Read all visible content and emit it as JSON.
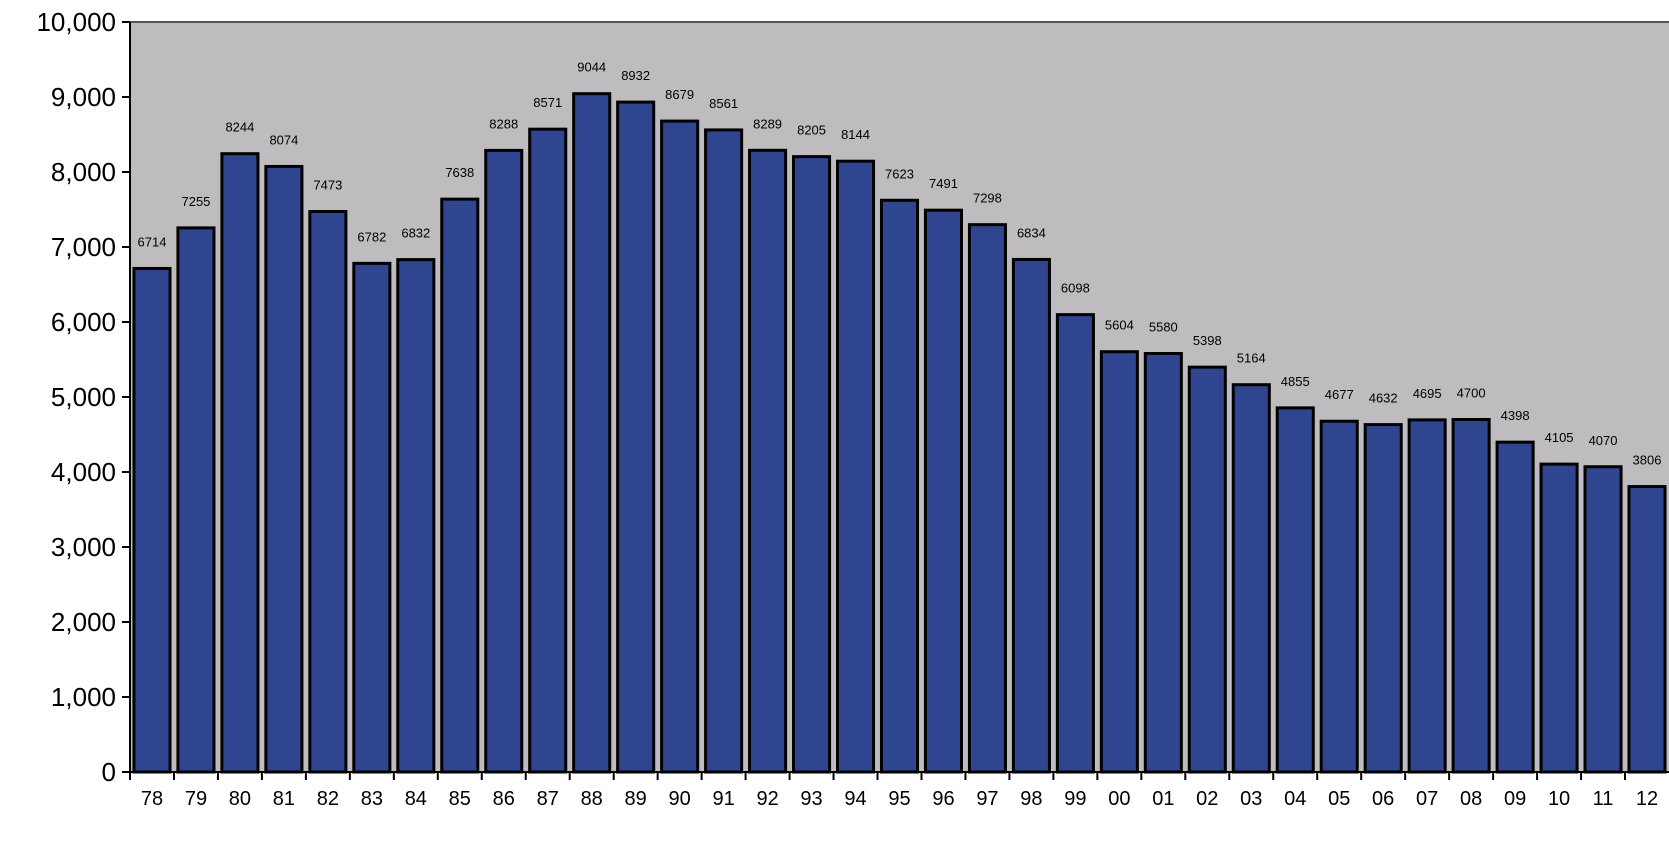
{
  "chart_data": {
    "type": "bar",
    "title": "",
    "xlabel": "",
    "ylabel": "",
    "categories": [
      "78",
      "79",
      "80",
      "81",
      "82",
      "83",
      "84",
      "85",
      "86",
      "87",
      "88",
      "89",
      "90",
      "91",
      "92",
      "93",
      "94",
      "95",
      "96",
      "97",
      "98",
      "99",
      "00",
      "01",
      "02",
      "03",
      "04",
      "05",
      "06",
      "07",
      "08",
      "09",
      "10",
      "11",
      "12"
    ],
    "values": [
      6714,
      7255,
      8244,
      8074,
      7473,
      6782,
      6832,
      7638,
      8288,
      8571,
      9044,
      8932,
      8679,
      8561,
      8289,
      8205,
      8144,
      7623,
      7491,
      7298,
      6834,
      6098,
      5604,
      5580,
      5398,
      5164,
      4855,
      4677,
      4632,
      4695,
      4700,
      4398,
      4105,
      4070,
      3806
    ],
    "data_labels": [
      "6714",
      "7255",
      "8244",
      "8074",
      "7473",
      "6782",
      "6832",
      "7638",
      "8288",
      "8571",
      "9044",
      "8932",
      "8679",
      "8561",
      "8289",
      "8205",
      "8144",
      "7623",
      "7491",
      "7298",
      "6834",
      "6098",
      "5604",
      "5580",
      "5398",
      "5164",
      "4855",
      "4677",
      "4632",
      "4695",
      "4700",
      "4398",
      "4105",
      "4070",
      "3806"
    ],
    "ylim": [
      0,
      10000
    ],
    "yticks": [
      0,
      1000,
      2000,
      3000,
      4000,
      5000,
      6000,
      7000,
      8000,
      9000,
      10000
    ],
    "ytick_labels": [
      "0",
      "1,000",
      "2,000",
      "3,000",
      "4,000",
      "5,000",
      "6,000",
      "7,000",
      "8,000",
      "9,000",
      "10,000"
    ],
    "grid": false,
    "legend": "none",
    "colors": {
      "bar_fill": "#2f4590",
      "bar_stroke": "#000000",
      "plot_background": "#bebcbf",
      "page_background": "#ffffff",
      "axis": "#000000"
    }
  }
}
